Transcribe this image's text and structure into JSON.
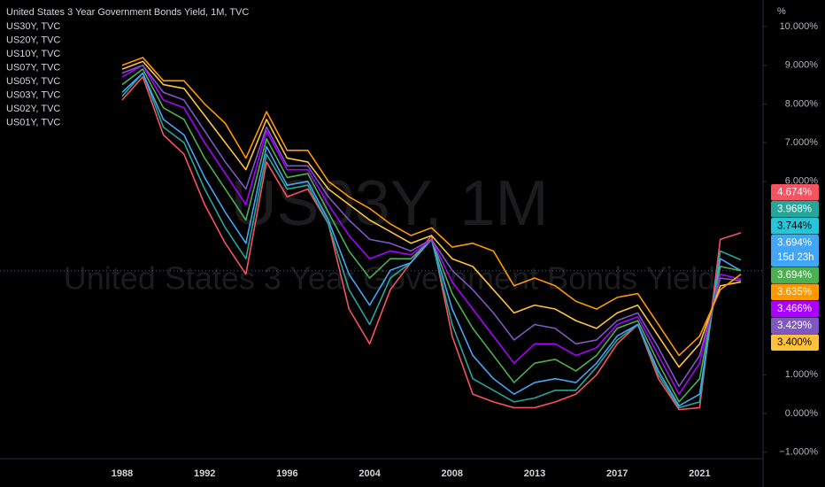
{
  "chart_data": {
    "type": "line",
    "title": "United States 3 Year Government Bonds Yield, 1M, TVC",
    "watermark": "US03Y, 1M",
    "watermark_subtitle": "United States 3 Year Government Bonds Yield",
    "y_unit": "%",
    "categories": [
      "1988",
      null,
      null,
      null,
      "1992",
      null,
      null,
      null,
      "1996",
      null,
      null,
      null,
      "2004",
      null,
      null,
      null,
      "2008",
      null,
      null,
      null,
      "2013",
      null,
      null,
      null,
      "2017",
      null,
      null,
      null,
      "2021",
      null,
      null
    ],
    "ylim": [
      -1.3,
      10.3
    ],
    "yticks": [
      {
        "value": -1,
        "label": "−1.000%"
      },
      {
        "value": 0,
        "label": "0.000%"
      },
      {
        "value": 1,
        "label": "1.000%"
      },
      {
        "value": 6,
        "label": "6.000%"
      },
      {
        "value": 7,
        "label": "7.000%"
      },
      {
        "value": 8,
        "label": "8.000%"
      },
      {
        "value": 9,
        "label": "9.000%"
      },
      {
        "value": 10,
        "label": "10.000%"
      }
    ],
    "series": [
      {
        "name": "US30Y, TVC",
        "color": "#ff9800",
        "values": [
          9.0,
          9.2,
          8.6,
          8.6,
          8.0,
          7.5,
          6.6,
          7.8,
          6.8,
          6.8,
          6.0,
          5.6,
          5.3,
          4.9,
          4.6,
          4.8,
          4.3,
          4.4,
          4.2,
          3.3,
          3.5,
          3.3,
          2.9,
          2.7,
          3.0,
          3.1,
          2.3,
          1.5,
          2.0,
          3.2,
          3.6
        ]
      },
      {
        "name": "US20Y, TVC",
        "color": "#ffc23a",
        "values": [
          8.9,
          9.1,
          8.5,
          8.4,
          7.7,
          7.0,
          6.3,
          7.6,
          6.6,
          6.5,
          5.8,
          5.4,
          5.0,
          4.7,
          4.4,
          4.6,
          4.0,
          3.8,
          3.2,
          2.6,
          2.8,
          2.7,
          2.4,
          2.2,
          2.6,
          2.8,
          2.0,
          1.2,
          1.8,
          3.3,
          3.4
        ]
      },
      {
        "name": "US10Y, TVC",
        "color": "#7e57c2",
        "values": [
          8.8,
          9.0,
          8.3,
          8.1,
          7.3,
          6.5,
          5.8,
          7.4,
          6.4,
          6.4,
          5.6,
          5.0,
          4.5,
          4.4,
          4.2,
          4.5,
          3.7,
          3.2,
          2.6,
          1.9,
          2.3,
          2.2,
          1.8,
          1.9,
          2.4,
          2.6,
          1.7,
          0.7,
          1.5,
          3.5,
          3.43
        ]
      },
      {
        "name": "US07Y, TVC",
        "color": "#aa00ff",
        "values": [
          8.7,
          9.0,
          8.1,
          7.9,
          7.0,
          6.2,
          5.4,
          7.3,
          6.3,
          6.3,
          5.4,
          4.6,
          4.0,
          4.2,
          4.1,
          4.5,
          3.4,
          2.7,
          2.0,
          1.3,
          1.8,
          1.8,
          1.5,
          1.7,
          2.3,
          2.5,
          1.5,
          0.5,
          1.3,
          3.6,
          3.47
        ]
      },
      {
        "name": "US05Y, TVC",
        "color": "#4caf50",
        "values": [
          8.5,
          8.9,
          7.9,
          7.6,
          6.6,
          5.8,
          5.0,
          7.1,
          6.1,
          6.2,
          5.2,
          4.2,
          3.5,
          4.0,
          4.0,
          4.5,
          3.1,
          2.2,
          1.5,
          0.8,
          1.3,
          1.4,
          1.1,
          1.5,
          2.2,
          2.4,
          1.3,
          0.3,
          0.9,
          3.8,
          3.69
        ]
      },
      {
        "name": "US03Y, TVC",
        "color": "#42a5f5",
        "values": [
          8.3,
          8.8,
          7.6,
          7.2,
          6.1,
          5.2,
          4.4,
          6.9,
          5.9,
          6.0,
          5.0,
          3.6,
          2.8,
          3.7,
          3.9,
          4.5,
          2.7,
          1.5,
          0.9,
          0.5,
          0.8,
          0.9,
          0.8,
          1.3,
          2.0,
          2.3,
          1.1,
          0.2,
          0.5,
          4.0,
          3.69
        ]
      },
      {
        "name": "US02Y, TVC",
        "color": "#26a69a",
        "values": [
          8.2,
          8.8,
          7.4,
          7.0,
          5.8,
          4.8,
          4.0,
          6.7,
          5.8,
          5.9,
          4.9,
          3.2,
          2.3,
          3.5,
          3.9,
          4.5,
          2.3,
          0.9,
          0.6,
          0.3,
          0.4,
          0.6,
          0.6,
          1.2,
          1.9,
          2.3,
          1.0,
          0.15,
          0.3,
          4.2,
          3.97
        ]
      },
      {
        "name": "US01Y, TVC",
        "color": "#f7525f",
        "values": [
          8.1,
          8.7,
          7.2,
          6.7,
          5.4,
          4.4,
          3.6,
          6.5,
          5.6,
          5.8,
          4.9,
          2.7,
          1.8,
          3.2,
          3.9,
          4.6,
          2.0,
          0.5,
          0.3,
          0.15,
          0.15,
          0.3,
          0.5,
          1.0,
          1.8,
          2.3,
          0.9,
          0.1,
          0.15,
          4.5,
          4.67
        ]
      }
    ],
    "price_tags": [
      {
        "label": "4.674%",
        "color": "#f7525f"
      },
      {
        "label": "3.968%",
        "color": "#26a69a"
      },
      {
        "label": "3.744%",
        "color": "#26c6da"
      },
      {
        "label": "3.694%",
        "sublabel": "15d 23h",
        "color": "#42a5f5"
      },
      {
        "label": "3.694%",
        "color": "#4caf50"
      },
      {
        "label": "3.635%",
        "color": "#ff9800"
      },
      {
        "label": "3.466%",
        "color": "#aa00ff"
      },
      {
        "label": "3.429%",
        "color": "#7e57c2"
      },
      {
        "label": "3.400%",
        "color": "#ffc23a"
      }
    ]
  }
}
